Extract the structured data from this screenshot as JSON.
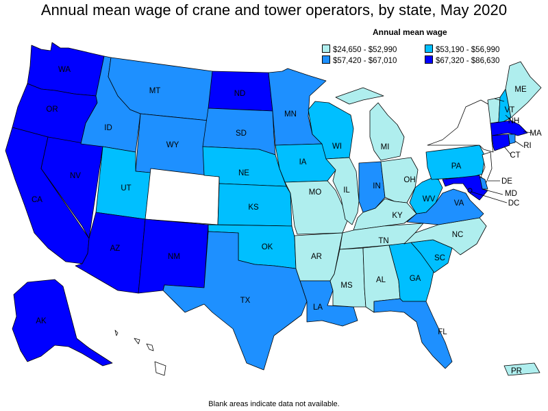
{
  "title": "Annual mean wage of crane and tower operators, by state, May 2020",
  "legend": {
    "title": "Annual mean wage",
    "items": [
      {
        "label": "$24,650 - $52,990",
        "color": "#afeeee"
      },
      {
        "label": "$53,190 - $56,990",
        "color": "#00bfff"
      },
      {
        "label": "$57,420 - $67,010",
        "color": "#1e90ff"
      },
      {
        "label": "$67,320 - $86,630",
        "color": "#0000ff"
      }
    ]
  },
  "footnote": "Blank areas indicate data not available.",
  "colors": {
    "no_data": "#ffffff",
    "border": "#000000"
  },
  "states": {
    "WA": {
      "label": "WA",
      "tier": 3
    },
    "OR": {
      "label": "OR",
      "tier": 3
    },
    "CA": {
      "label": "CA",
      "tier": 3
    },
    "NV": {
      "label": "NV",
      "tier": 3
    },
    "ID": {
      "label": "ID",
      "tier": 2
    },
    "MT": {
      "label": "MT",
      "tier": 2
    },
    "WY": {
      "label": "WY",
      "tier": 2
    },
    "UT": {
      "label": "UT",
      "tier": 1
    },
    "CO": {
      "label": "",
      "tier": null
    },
    "AZ": {
      "label": "AZ",
      "tier": 3
    },
    "NM": {
      "label": "NM",
      "tier": 3
    },
    "ND": {
      "label": "ND",
      "tier": 3
    },
    "SD": {
      "label": "SD",
      "tier": 2
    },
    "NE": {
      "label": "NE",
      "tier": 1
    },
    "KS": {
      "label": "KS",
      "tier": 1
    },
    "OK": {
      "label": "OK",
      "tier": 1
    },
    "TX": {
      "label": "TX",
      "tier": 2
    },
    "MN": {
      "label": "MN",
      "tier": 2
    },
    "IA": {
      "label": "IA",
      "tier": 1
    },
    "MO": {
      "label": "MO",
      "tier": 0
    },
    "AR": {
      "label": "AR",
      "tier": 0
    },
    "LA": {
      "label": "LA",
      "tier": 2
    },
    "WI": {
      "label": "WI",
      "tier": 1
    },
    "IL": {
      "label": "IL",
      "tier": 0
    },
    "MI": {
      "label": "MI",
      "tier": 0
    },
    "IN": {
      "label": "IN",
      "tier": 2
    },
    "OH": {
      "label": "OH",
      "tier": 0
    },
    "KY": {
      "label": "KY",
      "tier": 0
    },
    "TN": {
      "label": "TN",
      "tier": 0
    },
    "MS": {
      "label": "MS",
      "tier": 0
    },
    "AL": {
      "label": "AL",
      "tier": 0
    },
    "GA": {
      "label": "GA",
      "tier": 1
    },
    "FL": {
      "label": "FL",
      "tier": 2
    },
    "SC": {
      "label": "SC",
      "tier": 1
    },
    "NC": {
      "label": "NC",
      "tier": 0
    },
    "VA": {
      "label": "VA",
      "tier": 2
    },
    "WV": {
      "label": "WV",
      "tier": 1
    },
    "PA": {
      "label": "PA",
      "tier": 1
    },
    "NY": {
      "label": "",
      "tier": null
    },
    "ME": {
      "label": "ME",
      "tier": 0
    },
    "VT": {
      "label": "VT",
      "tier": 0
    },
    "NH": {
      "label": "NH",
      "tier": 1
    },
    "MA": {
      "label": "MA",
      "tier": 3
    },
    "RI": {
      "label": "RI",
      "tier": 2
    },
    "CT": {
      "label": "CT",
      "tier": 3
    },
    "NJ": {
      "label": "",
      "tier": null
    },
    "DE": {
      "label": "DE",
      "tier": 2
    },
    "MD": {
      "label": "MD",
      "tier": 3
    },
    "DC": {
      "label": "DC",
      "tier": 3
    },
    "AK": {
      "label": "AK",
      "tier": 3
    },
    "HI": {
      "label": "",
      "tier": null
    },
    "PR": {
      "label": "PR",
      "tier": 0
    }
  }
}
